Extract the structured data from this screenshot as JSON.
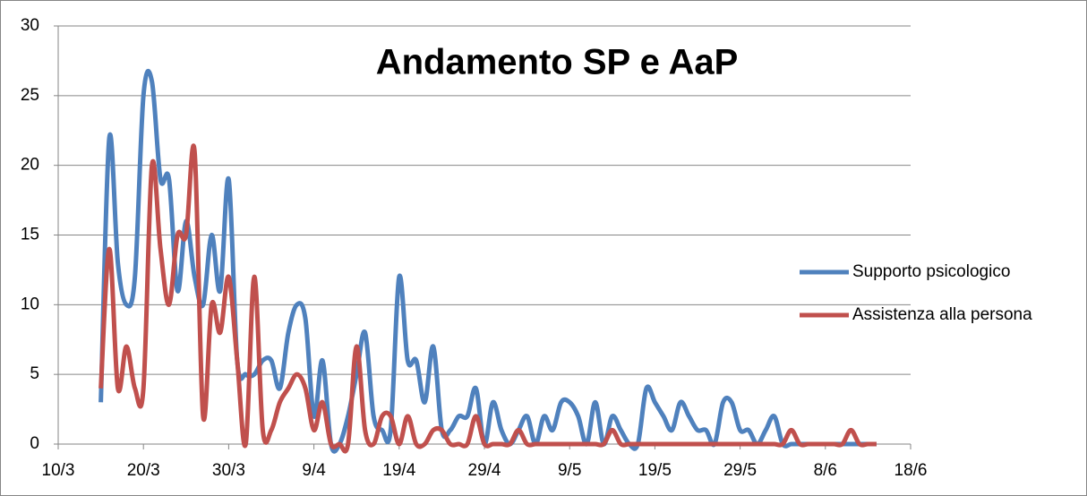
{
  "chart_data": {
    "type": "line",
    "title": "Andamento SP e AaP",
    "x": [
      5,
      6,
      7,
      8,
      9,
      10,
      11,
      12,
      13,
      14,
      15,
      16,
      17,
      18,
      19,
      20,
      21,
      22,
      23,
      24,
      25,
      26,
      27,
      28,
      29,
      30,
      31,
      32,
      33,
      34,
      35,
      36,
      37,
      38,
      39,
      40,
      41,
      42,
      43,
      44,
      45,
      46,
      47,
      48,
      49,
      50,
      51,
      52,
      53,
      54,
      55,
      56,
      57,
      58,
      59,
      60,
      61,
      62,
      63,
      64,
      65,
      66,
      67,
      68,
      69,
      70,
      71,
      72,
      73,
      74,
      75,
      76,
      77,
      78,
      79,
      80,
      81,
      82,
      83,
      84,
      85,
      86,
      87,
      88,
      89,
      90,
      91,
      92,
      93,
      94,
      95,
      96
    ],
    "series": [
      {
        "name": "Supporto psicologico",
        "color": "#4f81bd",
        "values": [
          3,
          22,
          13,
          10,
          12,
          25,
          26,
          19,
          19,
          11,
          16,
          12,
          10,
          15,
          11,
          19,
          6,
          5,
          5,
          6,
          6,
          4,
          8,
          10,
          9,
          2,
          6,
          0,
          0,
          2,
          5,
          8,
          2,
          1,
          1,
          12,
          6,
          6,
          3,
          7,
          1,
          1,
          2,
          2,
          4,
          0,
          3,
          1,
          0,
          1,
          2,
          0,
          2,
          1,
          3,
          3,
          2,
          0,
          3,
          0,
          2,
          1,
          0,
          0,
          4,
          3,
          2,
          1,
          3,
          2,
          1,
          1,
          0,
          3,
          3,
          1,
          1,
          0,
          1,
          2,
          0,
          0,
          0,
          0,
          0,
          0,
          0,
          0,
          0,
          0,
          0,
          0
        ]
      },
      {
        "name": "Assistenza alla persona",
        "color": "#c0504d",
        "values": [
          4,
          14,
          4,
          7,
          4,
          4,
          20,
          14,
          10,
          15,
          15,
          21,
          2,
          10,
          8,
          12,
          6,
          0,
          12,
          1,
          1,
          3,
          4,
          5,
          4,
          1,
          3,
          0,
          0,
          0,
          7,
          1,
          0,
          2,
          2,
          0,
          2,
          0,
          0,
          1,
          1,
          0,
          0,
          0,
          2,
          0,
          0,
          0,
          0,
          1,
          0,
          0,
          0,
          0,
          0,
          0,
          0,
          0,
          0,
          0,
          1,
          0,
          0,
          0,
          0,
          0,
          0,
          0,
          0,
          0,
          0,
          0,
          0,
          0,
          0,
          0,
          0,
          0,
          0,
          0,
          0,
          1,
          0,
          0,
          0,
          0,
          0,
          0,
          1,
          0,
          0,
          0
        ]
      }
    ],
    "xlim": [
      0,
      100
    ],
    "xticks": [
      {
        "value": 0,
        "label": "10/3"
      },
      {
        "value": 10,
        "label": "20/3"
      },
      {
        "value": 20,
        "label": "30/3"
      },
      {
        "value": 30,
        "label": "9/4"
      },
      {
        "value": 40,
        "label": "19/4"
      },
      {
        "value": 50,
        "label": "29/4"
      },
      {
        "value": 60,
        "label": "9/5"
      },
      {
        "value": 70,
        "label": "19/5"
      },
      {
        "value": 80,
        "label": "29/5"
      },
      {
        "value": 90,
        "label": "8/6"
      },
      {
        "value": 100,
        "label": "18/6"
      }
    ],
    "ylim": [
      0,
      30
    ],
    "yticks": [
      0,
      5,
      10,
      15,
      20,
      25,
      30
    ],
    "grid": true,
    "legend": "right"
  }
}
